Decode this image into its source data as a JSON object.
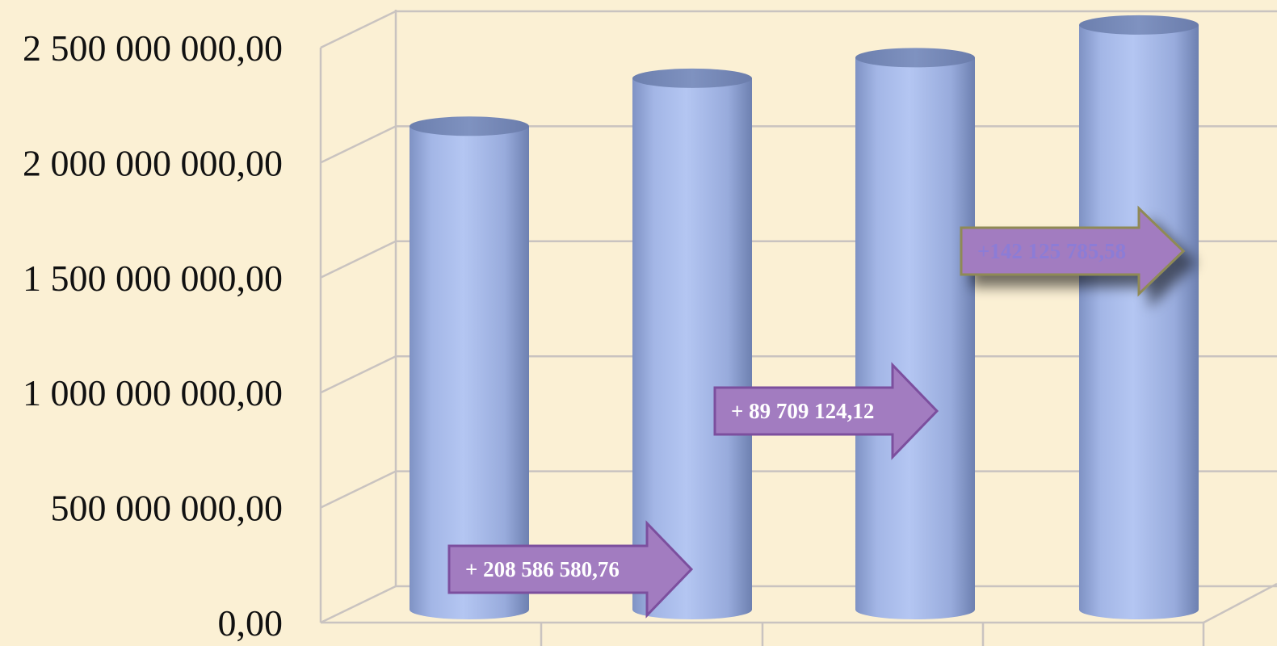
{
  "chart_data": {
    "type": "bar",
    "style": "3d-cylinder",
    "categories": [
      "",
      "",
      "",
      ""
    ],
    "values": [
      2060000000,
      2268586580.76,
      2358295704.88,
      2500421490.46
    ],
    "ylim": [
      0,
      2500000000
    ],
    "yticks": [
      "0,00",
      "500 000 000,00",
      "1 000 000 000,00",
      "1 500 000 000,00",
      "2 000 000 000,00",
      "2 500 000 000,00"
    ],
    "grid": true,
    "annotations": [
      {
        "text": "+ 208 586 580,76"
      },
      {
        "text": "+ 89 709 124,12"
      },
      {
        "text": "+142 125 785,58"
      }
    ],
    "colors": {
      "bar": "#a3b7e8",
      "bar_dark": "#6f83b3",
      "arrow": "#a27cc0",
      "arrow_border": "#7c4f9e",
      "arrow_text_1": "#ffffff",
      "arrow_text_2": "#ffffff",
      "arrow_text_3": "#8c7cd6",
      "arrow3_border": "#8f8a55",
      "background": "#fbf0d4",
      "grid": "#c9c3c0"
    }
  }
}
